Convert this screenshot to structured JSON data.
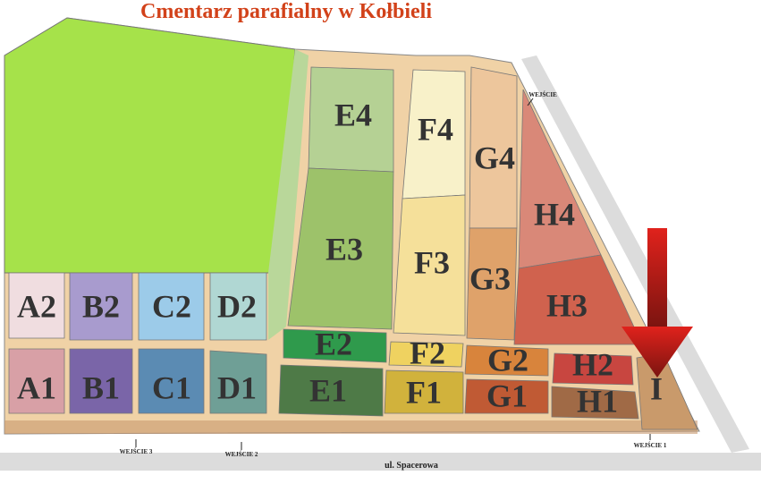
{
  "title": "Cmentarz parafialny w Kołbieli",
  "street": "ul. Spacerowa",
  "entrances": [
    {
      "label": "WEJŚCIE"
    },
    {
      "label": "WEJŚCIE 1"
    },
    {
      "label": "WEJŚCIE 2"
    },
    {
      "label": "WEJŚCIE 3"
    }
  ],
  "sections": [
    {
      "label": "A2"
    },
    {
      "label": "B2"
    },
    {
      "label": "C2"
    },
    {
      "label": "D2"
    },
    {
      "label": "A1"
    },
    {
      "label": "B1"
    },
    {
      "label": "C1"
    },
    {
      "label": "D1"
    },
    {
      "label": "E4"
    },
    {
      "label": "E3"
    },
    {
      "label": "E2"
    },
    {
      "label": "E1"
    },
    {
      "label": "F4"
    },
    {
      "label": "F3"
    },
    {
      "label": "F2"
    },
    {
      "label": "F1"
    },
    {
      "label": "G4"
    },
    {
      "label": "G3"
    },
    {
      "label": "G2"
    },
    {
      "label": "G1"
    },
    {
      "label": "H4"
    },
    {
      "label": "H3"
    },
    {
      "label": "H2"
    },
    {
      "label": "H1"
    },
    {
      "label": "I"
    }
  ]
}
